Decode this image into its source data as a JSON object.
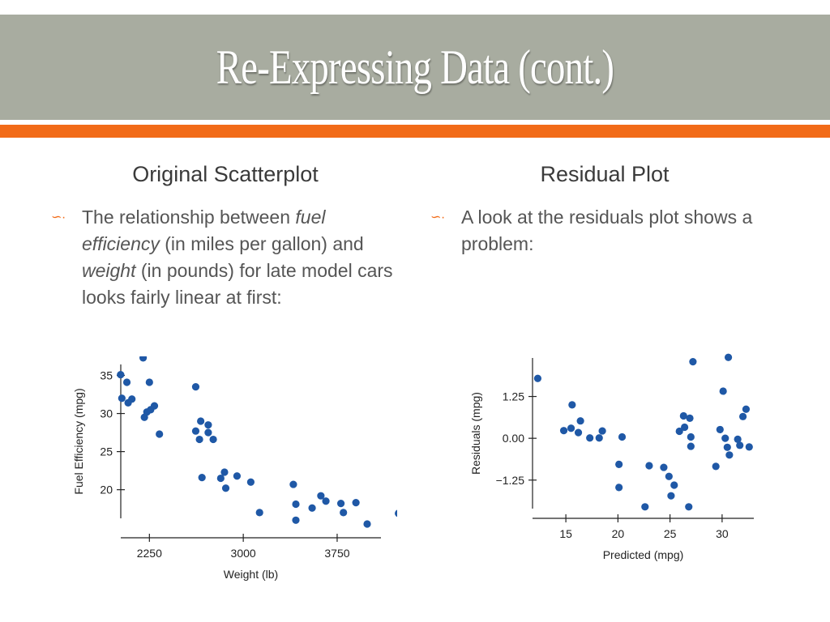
{
  "slide": {
    "title": "Re-Expressing Data (cont.)",
    "left_heading": "Original Scatterplot",
    "right_heading": "Residual Plot",
    "left_bullet": {
      "p1": "The relationship between ",
      "fuel": "fuel efficiency",
      "p2": " (in miles per gallon) and ",
      "weight": "weight",
      "p3": " (in pounds) for late model cars looks fairly linear at first:"
    },
    "right_bullet": "A look at the residuals plot shows a problem:",
    "bullet_icon": "swash-bullet-icon",
    "accent_color": "#f26b18",
    "title_bar_color": "#a8aca0",
    "point_color": "#1f58a6"
  },
  "chart_data": [
    {
      "type": "scatter",
      "xlabel": "Weight (lb)",
      "ylabel": "Fuel Efficiency (mpg)",
      "xlim": [
        1950,
        4100
      ],
      "ylim": [
        15.5,
        37.5
      ],
      "xticks": [
        2250,
        3000,
        3750
      ],
      "yticks": [
        20,
        25,
        30,
        35
      ],
      "grid": false,
      "points": [
        [
          2020,
          35.1
        ],
        [
          2070,
          34.1
        ],
        [
          2080,
          31.4
        ],
        [
          2030,
          32.0
        ],
        [
          2110,
          31.9
        ],
        [
          2200,
          37.3
        ],
        [
          2210,
          29.5
        ],
        [
          2230,
          30.2
        ],
        [
          2260,
          30.5
        ],
        [
          2250,
          34.1
        ],
        [
          2290,
          31.0
        ],
        [
          2330,
          27.3
        ],
        [
          2620,
          33.5
        ],
        [
          2620,
          27.7
        ],
        [
          2650,
          26.6
        ],
        [
          2660,
          29.0
        ],
        [
          2720,
          28.5
        ],
        [
          2720,
          27.5
        ],
        [
          2760,
          26.6
        ],
        [
          2670,
          21.6
        ],
        [
          2820,
          21.5
        ],
        [
          2850,
          22.3
        ],
        [
          2860,
          20.2
        ],
        [
          2950,
          21.8
        ],
        [
          3060,
          21.0
        ],
        [
          3130,
          17.0
        ],
        [
          3400,
          20.7
        ],
        [
          3420,
          18.1
        ],
        [
          3420,
          16.0
        ],
        [
          3550,
          17.6
        ],
        [
          3620,
          19.2
        ],
        [
          3660,
          18.5
        ],
        [
          3780,
          18.2
        ],
        [
          3800,
          17.0
        ],
        [
          3900,
          18.3
        ],
        [
          3990,
          15.5
        ],
        [
          4240,
          16.9
        ]
      ]
    },
    {
      "type": "scatter",
      "xlabel": "Predicted (mpg)",
      "ylabel": "Residuals (mpg)",
      "xlim": [
        11.8,
        33.2
      ],
      "ylim": [
        -2.2,
        2.45
      ],
      "xticks": [
        15,
        20,
        25,
        30
      ],
      "yticks": [
        1.25,
        0.0,
        -1.25
      ],
      "ytick_labels": [
        "1.25",
        "0.00",
        "−1.25"
      ],
      "grid": false,
      "points": [
        [
          12.3,
          1.79
        ],
        [
          14.8,
          0.23
        ],
        [
          15.5,
          0.3
        ],
        [
          15.6,
          1.0
        ],
        [
          16.2,
          0.17
        ],
        [
          16.4,
          0.52
        ],
        [
          17.3,
          0.01
        ],
        [
          18.2,
          0.01
        ],
        [
          18.5,
          0.22
        ],
        [
          20.1,
          -0.78
        ],
        [
          20.1,
          -1.47
        ],
        [
          20.4,
          0.04
        ],
        [
          22.6,
          -2.05
        ],
        [
          23.0,
          -0.82
        ],
        [
          24.4,
          -0.87
        ],
        [
          24.9,
          -1.14
        ],
        [
          25.1,
          -1.72
        ],
        [
          25.4,
          -1.4
        ],
        [
          25.9,
          0.21
        ],
        [
          26.3,
          0.67
        ],
        [
          26.4,
          0.33
        ],
        [
          26.8,
          -2.05
        ],
        [
          26.9,
          0.6
        ],
        [
          27.0,
          0.04
        ],
        [
          27.0,
          -0.24
        ],
        [
          27.2,
          2.29
        ],
        [
          29.4,
          -0.84
        ],
        [
          29.8,
          0.26
        ],
        [
          30.1,
          1.41
        ],
        [
          30.3,
          0.0
        ],
        [
          30.5,
          -0.27
        ],
        [
          30.6,
          2.42
        ],
        [
          30.7,
          -0.5
        ],
        [
          31.5,
          -0.03
        ],
        [
          31.7,
          -0.21
        ],
        [
          32.0,
          0.65
        ],
        [
          32.3,
          0.87
        ],
        [
          32.6,
          -0.26
        ]
      ]
    }
  ]
}
